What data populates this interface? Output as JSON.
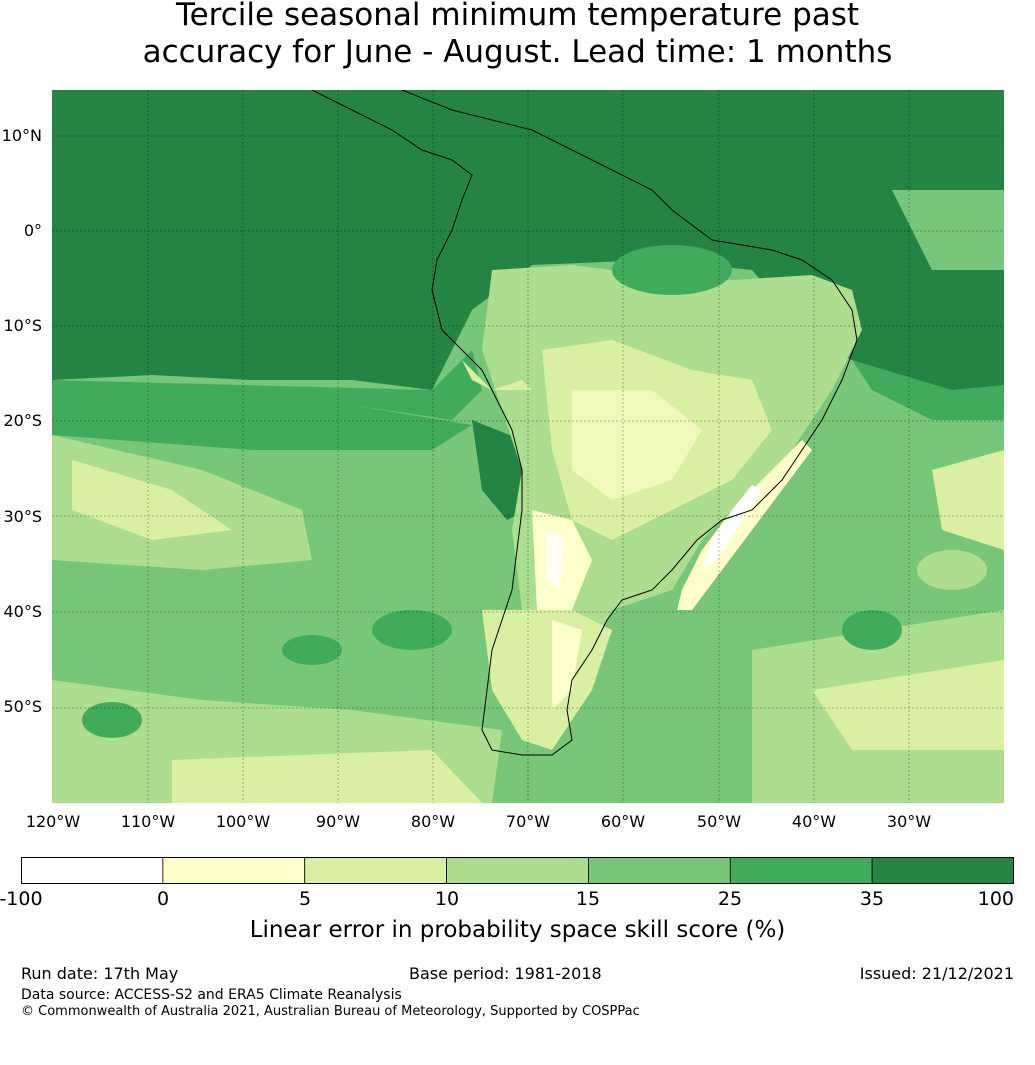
{
  "title": {
    "line1": "Tercile seasonal minimum temperature past",
    "line2": "accuracy for June - August. Lead time: 1 months"
  },
  "map": {
    "region": "South America and surrounding oceans",
    "lat_labels": [
      "10°N",
      "0°",
      "10°S",
      "20°S",
      "30°S",
      "40°S",
      "50°S"
    ],
    "lon_labels": [
      "120°W",
      "110°W",
      "100°W",
      "90°W",
      "80°W",
      "70°W",
      "60°W",
      "50°W",
      "40°W",
      "30°W"
    ],
    "gridlines": true
  },
  "colorbar": {
    "ticks": [
      "-100",
      "0",
      "5",
      "10",
      "15",
      "25",
      "35",
      "100"
    ],
    "colors": [
      "#ffffff",
      "#ffffcc",
      "#d9f0a3",
      "#addd8e",
      "#78c679",
      "#41ab5d",
      "#238443"
    ],
    "label": "Linear error in probability space skill score (%)"
  },
  "footer": {
    "run_date": "Run date: 17th May",
    "base_period": "Base period: 1981-2018",
    "issued": "Issued: 21/12/2021",
    "data_source": "Data source: ACCESS-S2 and ERA5 Climate Reanalysis",
    "copyright": "© Commonwealth of Australia 2021, Australian Bureau of Meteorology, Supported by COSPPac"
  }
}
